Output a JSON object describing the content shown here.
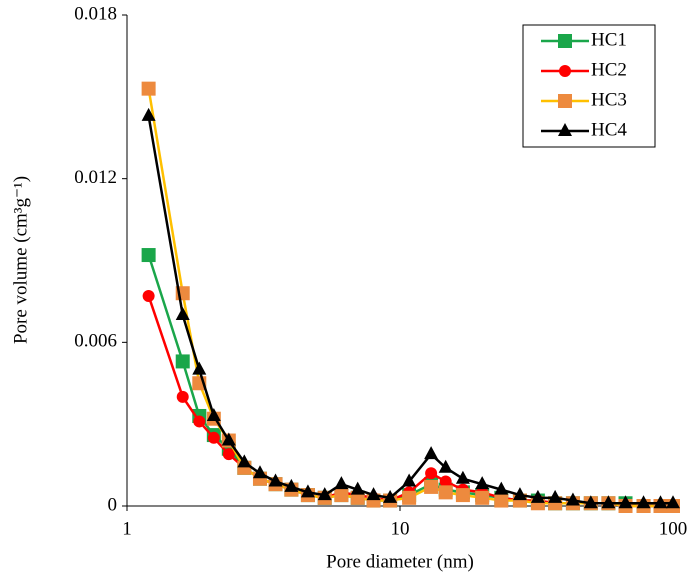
{
  "chart_data": {
    "type": "line",
    "x_label": "Pore diameter (nm)",
    "y_label": "Pore volume (cm³g⁻¹)",
    "x": [
      1.2,
      1.6,
      1.84,
      2.08,
      2.36,
      2.69,
      3.07,
      3.5,
      4.0,
      4.6,
      5.3,
      6.1,
      7,
      8,
      9.2,
      10.8,
      13,
      14.7,
      17,
      20,
      23.5,
      27.5,
      32,
      37,
      43,
      50,
      58,
      67,
      78,
      90,
      100
    ],
    "series": [
      {
        "name": "HC1",
        "color": "#1aa64a",
        "marker_color": "#1aa64a",
        "marker": "square",
        "values": [
          0.0092,
          0.0053,
          0.0033,
          0.0026,
          0.0021,
          0.0014,
          0.001,
          0.0008,
          0.0006,
          0.0004,
          0.0003,
          0.0004,
          0.0003,
          0.0002,
          0.0002,
          0.0004,
          0.0008,
          0.0006,
          0.0005,
          0.0004,
          0.0003,
          0.0002,
          0.0002,
          0.0001,
          0.0001,
          0.0001,
          0.0001,
          0.0001,
          0,
          0,
          0
        ]
      },
      {
        "name": "HC2",
        "color": "#ff0000",
        "marker_color": "#ff0000",
        "marker": "circle",
        "values": [
          0.0077,
          0.004,
          0.0031,
          0.0025,
          0.0019,
          0.0014,
          0.001,
          0.0008,
          0.0006,
          0.0004,
          0.0003,
          0.0005,
          0.0004,
          0.0003,
          0.0002,
          0.0005,
          0.0012,
          0.0009,
          0.0006,
          0.0005,
          0.0003,
          0.0002,
          0.0002,
          0.0001,
          0.0001,
          0.0001,
          0.0001,
          0,
          0,
          0,
          0
        ]
      },
      {
        "name": "HC3",
        "color": "#ffc000",
        "marker_color": "#ed8a3e",
        "marker": "square",
        "values": [
          0.0153,
          0.0078,
          0.0045,
          0.0032,
          0.0024,
          0.0014,
          0.001,
          0.0008,
          0.0006,
          0.0004,
          0.0003,
          0.0004,
          0.0003,
          0.0002,
          0.0002,
          0.0003,
          0.0007,
          0.0005,
          0.0004,
          0.0003,
          0.0002,
          0.0002,
          0.0001,
          0.0001,
          0.0001,
          0.0001,
          0.0001,
          0,
          0,
          0,
          0
        ]
      },
      {
        "name": "HC4",
        "color": "#000000",
        "marker_color": "#000000",
        "marker": "triangle",
        "values": [
          0.0143,
          0.007,
          0.005,
          0.0033,
          0.0024,
          0.0016,
          0.0012,
          0.0009,
          0.0007,
          0.0005,
          0.0004,
          0.0008,
          0.0006,
          0.0004,
          0.0003,
          0.0009,
          0.0019,
          0.0014,
          0.001,
          0.0008,
          0.0006,
          0.0004,
          0.0003,
          0.0003,
          0.0002,
          0.0001,
          0.0001,
          0.0001,
          0.0001,
          0.0001,
          0.0001
        ]
      }
    ],
    "xscale": "log",
    "xlim": [
      1,
      100
    ],
    "xticks": [
      1,
      10,
      100
    ],
    "ylim": [
      0,
      0.018
    ],
    "yticks": [
      0,
      0.006,
      0.012,
      0.018
    ],
    "grid": false,
    "legend": "upper right"
  }
}
